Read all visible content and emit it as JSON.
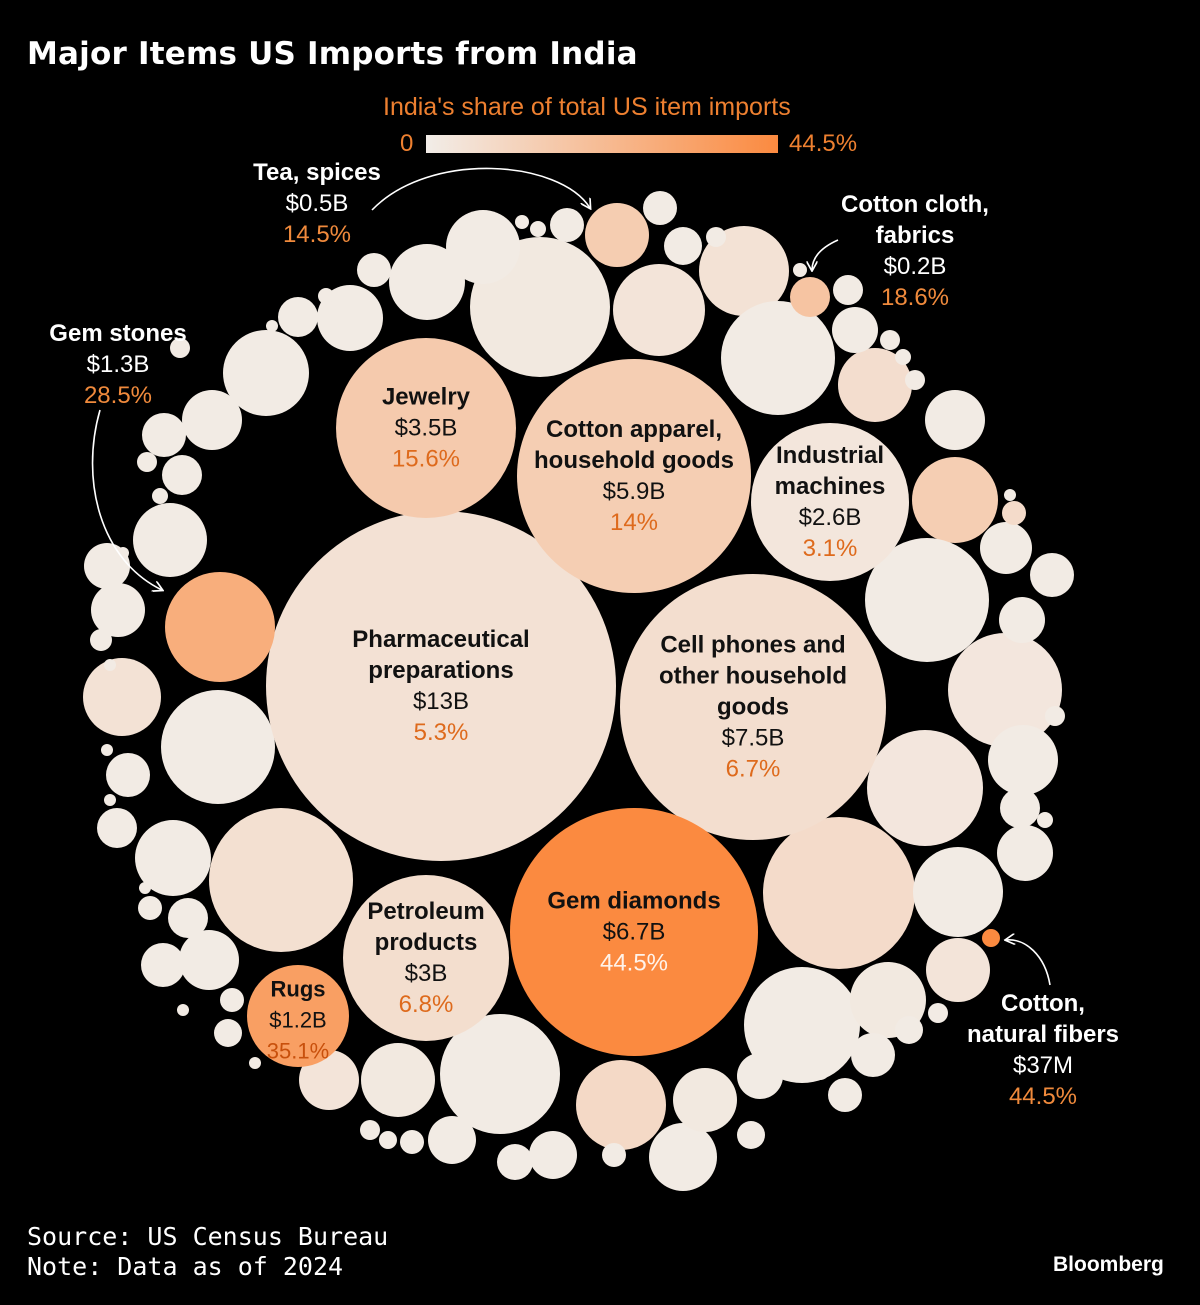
{
  "title": "Major Items US Imports from India",
  "legend": {
    "title": "India's share of total US item imports",
    "min": "0",
    "max": "44.5%",
    "color_low": "#f2ede8",
    "color_high": "#fb8a40"
  },
  "chart_data": {
    "type": "bubble",
    "title": "Major Items US Imports from India",
    "size_measure": "US import value",
    "color_measure": "India's share of total US item imports",
    "items": [
      {
        "name": "Pharmaceutical preparations",
        "value": "$13B",
        "share": "5.3%",
        "value_usd_b": 13,
        "share_pct": 5.3
      },
      {
        "name": "Cell phones and other household goods",
        "value": "$7.5B",
        "share": "6.7%",
        "value_usd_b": 7.5,
        "share_pct": 6.7
      },
      {
        "name": "Gem diamonds",
        "value": "$6.7B",
        "share": "44.5%",
        "value_usd_b": 6.7,
        "share_pct": 44.5
      },
      {
        "name": "Cotton apparel, household goods",
        "value": "$5.9B",
        "share": "14%",
        "value_usd_b": 5.9,
        "share_pct": 14
      },
      {
        "name": "Jewelry",
        "value": "$3.5B",
        "share": "15.6%",
        "value_usd_b": 3.5,
        "share_pct": 15.6
      },
      {
        "name": "Petroleum products",
        "value": "$3B",
        "share": "6.8%",
        "value_usd_b": 3,
        "share_pct": 6.8
      },
      {
        "name": "Industrial machines",
        "value": "$2.6B",
        "share": "3.1%",
        "value_usd_b": 2.6,
        "share_pct": 3.1
      },
      {
        "name": "Gem stones",
        "value": "$1.3B",
        "share": "28.5%",
        "value_usd_b": 1.3,
        "share_pct": 28.5
      },
      {
        "name": "Rugs",
        "value": "$1.2B",
        "share": "35.1%",
        "value_usd_b": 1.2,
        "share_pct": 35.1
      },
      {
        "name": "Tea, spices",
        "value": "$0.5B",
        "share": "14.5%",
        "value_usd_b": 0.5,
        "share_pct": 14.5
      },
      {
        "name": "Cotton cloth, fabrics",
        "value": "$0.2B",
        "share": "18.6%",
        "value_usd_b": 0.2,
        "share_pct": 18.6
      },
      {
        "name": "Cotton, natural fibers",
        "value": "$37M",
        "share": "44.5%",
        "value_usd_b": 0.037,
        "share_pct": 44.5
      }
    ]
  },
  "footer": {
    "source": "Source: US Census Bureau",
    "note": "Note: Data as of 2024",
    "brand": "Bloomberg"
  }
}
